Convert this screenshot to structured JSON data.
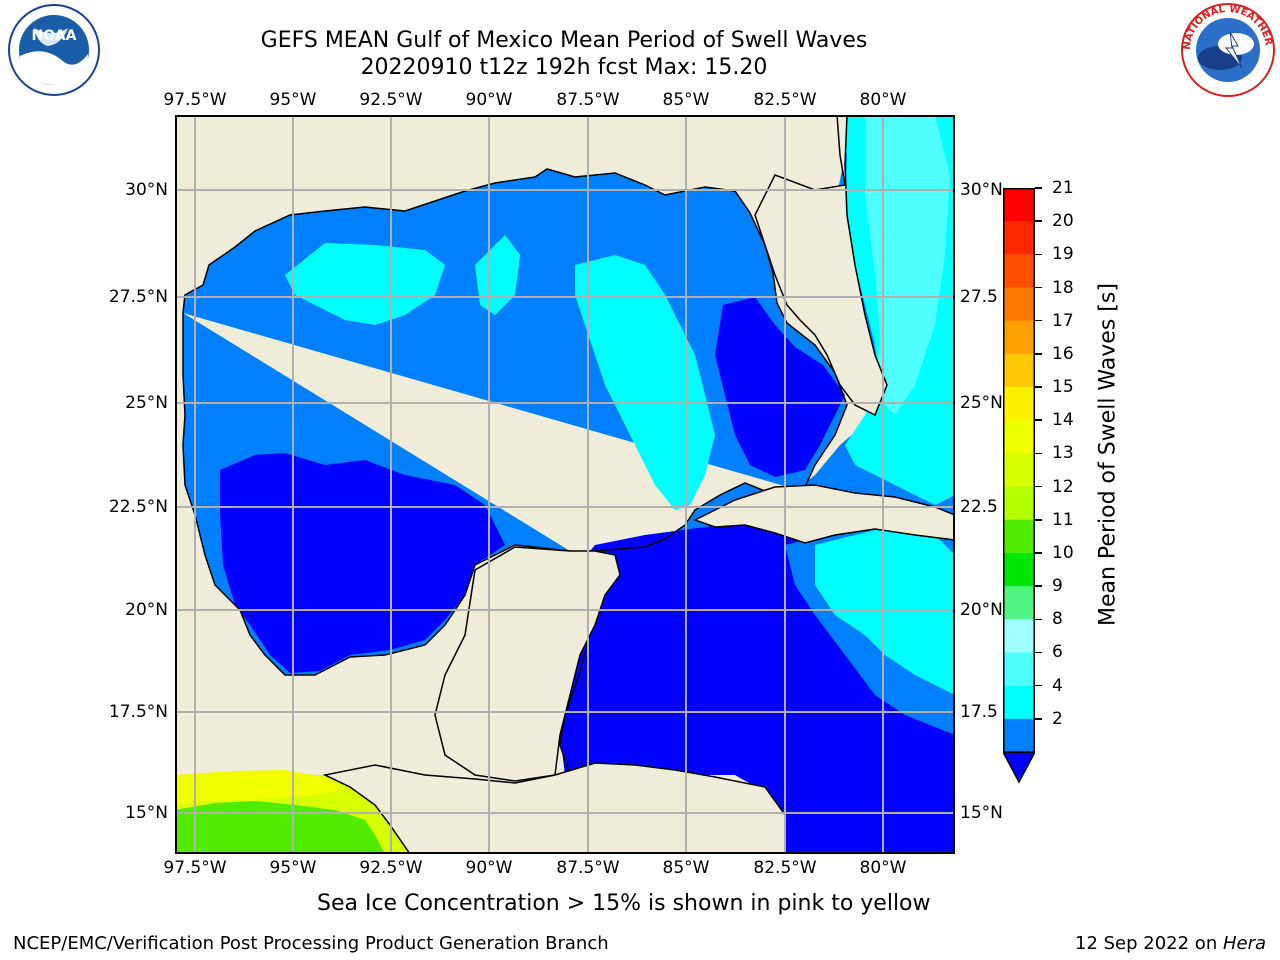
{
  "header": {
    "title_line1": "GEFS MEAN Gulf of Mexico Mean Period of Swell Waves",
    "title_line2": "20220910 t12z 192h fcst   Max: 15.20"
  },
  "map": {
    "lon_labels_top": [
      "97.5°W",
      "95°W",
      "92.5°W",
      "90°W",
      "87.5°W",
      "85°W",
      "82.5°W",
      "80°W"
    ],
    "lon_labels_bottom": [
      "97.5°W",
      "95°W",
      "92.5°W",
      "90°W",
      "87.5°W",
      "85°W",
      "82.5°W",
      "80°W"
    ],
    "lat_labels_left": [
      "30°N",
      "27.5°N",
      "25°N",
      "22.5°N",
      "20°N",
      "17.5°N",
      "15°N"
    ],
    "lat_labels_right": [
      "30°N",
      "27.5",
      "25°N",
      "22.5",
      "20°N",
      "17.5",
      "15°N"
    ],
    "colors": {
      "land": "#efedd9",
      "grid": "#b0b0b0",
      "coast": "#000000"
    }
  },
  "colorbar": {
    "label": "Mean Period of Swell Waves [s]",
    "ticks": [
      "21",
      "20",
      "19",
      "18",
      "17",
      "16",
      "15",
      "14",
      "13",
      "12",
      "11",
      "10",
      "9",
      "8",
      "6",
      "4",
      "2"
    ],
    "colors_top_to_bottom": [
      "#ff0000",
      "#ff2800",
      "#ff5000",
      "#ff7800",
      "#ffa000",
      "#ffc800",
      "#fff000",
      "#f0ff00",
      "#d7ff00",
      "#b4ff00",
      "#50eb00",
      "#00e600",
      "#50f582",
      "#a0ffff",
      "#50ffff",
      "#00ffff",
      "#0080ff"
    ],
    "underflow_color": "#0000ff"
  },
  "caption": "Sea Ice Concentration > 15% is shown in pink to yellow",
  "footer": {
    "left": "NCEP/EMC/Verification Post Processing Product Generation Branch",
    "date": "12 Sep 2022 on ",
    "host": "Hera"
  },
  "logos": {
    "noaa_text": "NOAA",
    "nws_text": "NATIONAL WEATHER SERVICE"
  }
}
